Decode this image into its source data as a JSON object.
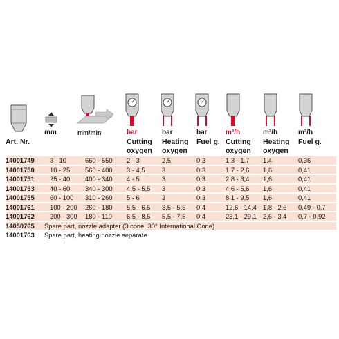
{
  "units": {
    "thickness": "mm",
    "speed": "mm/min",
    "cut_pressure": "bar",
    "heat_pressure": "bar",
    "fuel_pressure": "bar",
    "cut_flow": "m³/h",
    "heat_flow": "m³/h",
    "fuel_flow": "m³/h"
  },
  "headers": {
    "art": "Art. Nr.",
    "cut_pressure": [
      "Cutting",
      "oxygen"
    ],
    "heat_pressure": [
      "Heating",
      "oxygen"
    ],
    "fuel_pressure": "Fuel g.",
    "cut_flow": [
      "Cutting",
      "oxygen"
    ],
    "heat_flow": [
      "Heating",
      "oxygen"
    ],
    "fuel_flow": "Fuel g."
  },
  "colors": {
    "accent_red": "#c8102e",
    "row_shade": "#fbe1d4",
    "icon_gray": "#cfcfcf"
  },
  "rows": [
    {
      "art": "14001749",
      "thickness": "3 - 10",
      "speed": "660 - 550",
      "cut_p": "2 - 3",
      "heat_p": "2,5",
      "fuel_p": "0,3",
      "cut_f": "1,3 - 1,7",
      "heat_f": "1,4",
      "fuel_f": "0,36"
    },
    {
      "art": "14001750",
      "thickness": "10 - 25",
      "speed": "560 - 400",
      "cut_p": "3 - 4,5",
      "heat_p": "3",
      "fuel_p": "0,3",
      "cut_f": "1,7 - 2,6",
      "heat_f": "1,6",
      "fuel_f": "0,41"
    },
    {
      "art": "14001751",
      "thickness": "25 - 40",
      "speed": "400 - 340",
      "cut_p": "4 - 5",
      "heat_p": "3",
      "fuel_p": "0,3",
      "cut_f": "2,8 - 3,4",
      "heat_f": "1,6",
      "fuel_f": "0,41"
    },
    {
      "art": "14001753",
      "thickness": "40 - 60",
      "speed": "340 - 300",
      "cut_p": "4,5 - 5,5",
      "heat_p": "3",
      "fuel_p": "0,3",
      "cut_f": "4,6 - 5,6",
      "heat_f": "1,6",
      "fuel_f": "0,41"
    },
    {
      "art": "14001755",
      "thickness": "60 - 100",
      "speed": "310 - 260",
      "cut_p": "5 - 6",
      "heat_p": "3",
      "fuel_p": "0,3",
      "cut_f": "8,1 - 9,5",
      "heat_f": "1,6",
      "fuel_f": "0,41"
    },
    {
      "art": "14001761",
      "thickness": "100 - 200",
      "speed": "260 - 180",
      "cut_p": "5,5 - 6,5",
      "heat_p": "3,5 - 5,5",
      "fuel_p": "0,4",
      "cut_f": "12,6 - 14,4",
      "heat_f": "1,8 - 2,6",
      "fuel_f": "0,49 - 0,7"
    },
    {
      "art": "14001762",
      "thickness": "200 - 300",
      "speed": "180 - 110",
      "cut_p": "6,5 - 8,5",
      "heat_p": "5,5 - 7,5",
      "fuel_p": "0,4",
      "cut_f": "23,1 - 29,1",
      "heat_f": "2,6 - 3,4",
      "fuel_f": "0,7 - 0,92"
    }
  ],
  "spare_rows": [
    {
      "art": "14050765",
      "text": "Spare part, nozzle adapter (3 cone, 30° International Cone)"
    },
    {
      "art": "14001763",
      "text": "Spare part,  heating nozzle separate"
    }
  ]
}
